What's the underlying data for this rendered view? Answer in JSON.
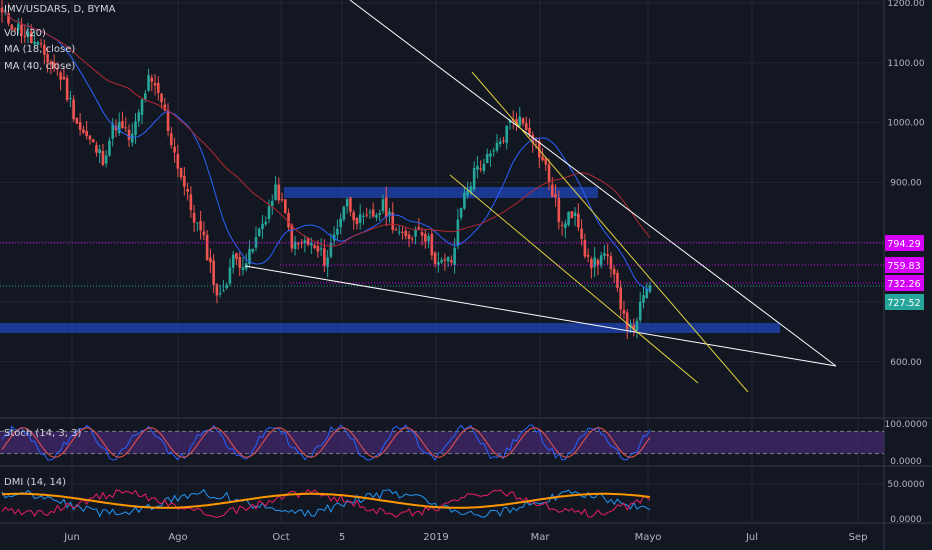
{
  "legend": {
    "symbol": "IMV/USDARS, D, BYMA",
    "vol": "Vol. (20)",
    "ma18": "MA (18, close)",
    "ma40": "MA (40, close)"
  },
  "panes": {
    "stoch": "Stoch (14, 3, 3)",
    "dmi": "DMI (14, 14)"
  },
  "colors": {
    "background": "#131722",
    "grid": "#232734",
    "up": "#26a69a",
    "down": "#ef5350",
    "ma18": "#2962ff",
    "ma40": "#b22833",
    "zone": "#1f3fa6",
    "trendline": "#ffffff",
    "channel": "#e0d23c",
    "level": "#d500f9",
    "stoch_band": "#4a2a7a",
    "stoch_k": "#2962ff",
    "stoch_d": "#ef5350",
    "dmi_plus": "#2196f3",
    "dmi_minus": "#e91e63",
    "adx": "#ff9800"
  },
  "chart_data": [
    {
      "type": "candlestick",
      "title": "IMV/USDARS, D, BYMA",
      "x_ticks": [
        "Jun",
        "Ago",
        "Oct",
        "5",
        "2019",
        "Mar",
        "Mayo",
        "Jul",
        "Sep"
      ],
      "y_ticks": [
        "1200.00",
        "1100.00",
        "1000.00",
        "900.00",
        "600.00"
      ],
      "ylim": [
        520,
        1200
      ],
      "price_anchors": [
        {
          "t": 0,
          "p": 1180
        },
        {
          "t": 0.035,
          "p": 1150
        },
        {
          "t": 0.06,
          "p": 1120
        },
        {
          "t": 0.09,
          "p": 1080
        },
        {
          "t": 0.12,
          "p": 990
        },
        {
          "t": 0.155,
          "p": 940
        },
        {
          "t": 0.175,
          "p": 1000
        },
        {
          "t": 0.2,
          "p": 970
        },
        {
          "t": 0.225,
          "p": 1070
        },
        {
          "t": 0.245,
          "p": 1040
        },
        {
          "t": 0.265,
          "p": 955
        },
        {
          "t": 0.29,
          "p": 860
        },
        {
          "t": 0.315,
          "p": 790
        },
        {
          "t": 0.335,
          "p": 700
        },
        {
          "t": 0.355,
          "p": 770
        },
        {
          "t": 0.38,
          "p": 770
        },
        {
          "t": 0.405,
          "p": 840
        },
        {
          "t": 0.425,
          "p": 890
        },
        {
          "t": 0.45,
          "p": 790
        },
        {
          "t": 0.47,
          "p": 800
        },
        {
          "t": 0.5,
          "p": 770
        },
        {
          "t": 0.53,
          "p": 870
        },
        {
          "t": 0.555,
          "p": 830
        },
        {
          "t": 0.59,
          "p": 860
        },
        {
          "t": 0.62,
          "p": 800
        },
        {
          "t": 0.645,
          "p": 830
        },
        {
          "t": 0.675,
          "p": 760
        },
        {
          "t": 0.695,
          "p": 770
        },
        {
          "t": 0.71,
          "p": 870
        },
        {
          "t": 0.735,
          "p": 930
        },
        {
          "t": 0.755,
          "p": 940
        },
        {
          "t": 0.79,
          "p": 1010
        },
        {
          "t": 0.815,
          "p": 990
        },
        {
          "t": 0.84,
          "p": 920
        },
        {
          "t": 0.865,
          "p": 820
        },
        {
          "t": 0.885,
          "p": 860
        },
        {
          "t": 0.905,
          "p": 760
        },
        {
          "t": 0.93,
          "p": 780
        },
        {
          "t": 0.955,
          "p": 700
        },
        {
          "t": 0.97,
          "p": 650
        },
        {
          "t": 1,
          "p": 728
        }
      ],
      "moving_averages": [
        {
          "name": "MA (18, close)",
          "period": 18
        },
        {
          "name": "MA (40, close)",
          "period": 40
        }
      ],
      "price_labels": [
        {
          "value": 794.29,
          "text": "794.29",
          "color": "#d500f9"
        },
        {
          "value": 759.83,
          "text": "759.83",
          "color": "#d500f9"
        },
        {
          "value": 732.26,
          "text": "732.26",
          "color": "#d500f9"
        },
        {
          "value": 727.52,
          "text": "727.52",
          "color": "#26a69a"
        }
      ]
    },
    {
      "type": "line",
      "title": "Stoch (14, 3, 3)",
      "y_ticks": [
        "100.0000",
        "0.0000"
      ],
      "ylim": [
        0,
        100
      ],
      "band": [
        20,
        80
      ]
    },
    {
      "type": "line",
      "title": "DMI (14, 14)",
      "y_ticks": [
        "50.0000",
        "0.0000"
      ],
      "ylim": [
        0,
        60
      ]
    }
  ]
}
